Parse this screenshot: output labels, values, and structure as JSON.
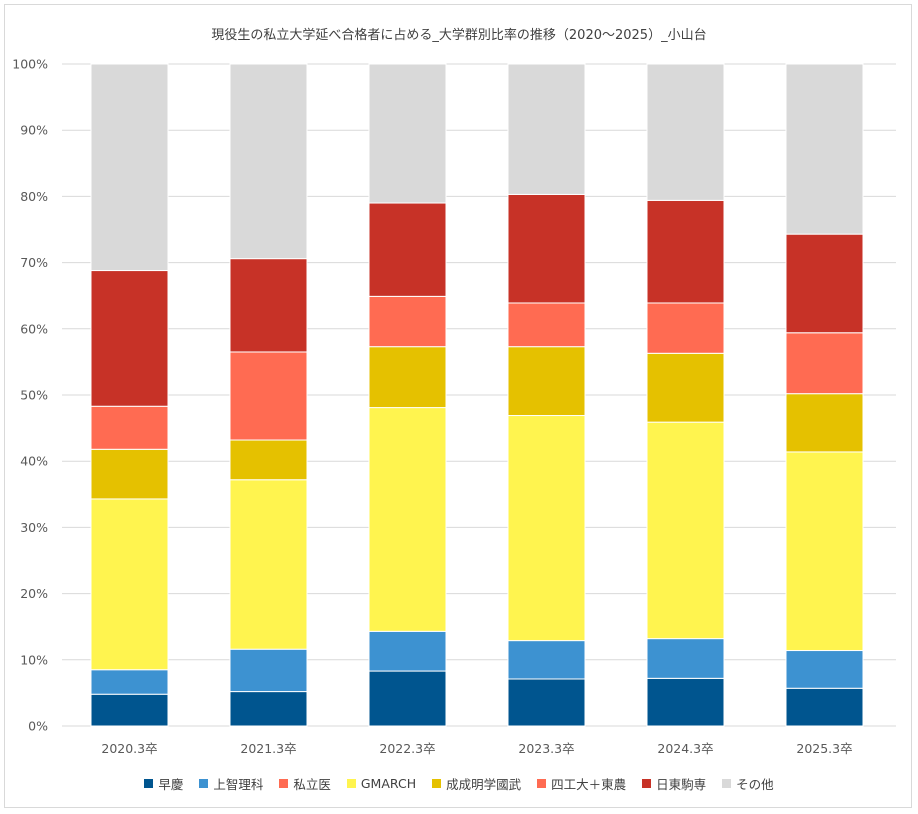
{
  "chart_data": {
    "type": "bar",
    "stacked": true,
    "percent": true,
    "title": "現役生の私立大学延べ合格者に占める_大学群別比率の推移（2020～2025）_小山台",
    "categories": [
      "2020.3卒",
      "2021.3卒",
      "2022.3卒",
      "2023.3卒",
      "2024.3卒",
      "2025.3卒"
    ],
    "ylim": [
      0,
      100
    ],
    "yticks": [
      "0%",
      "10%",
      "20%",
      "30%",
      "40%",
      "50%",
      "60%",
      "70%",
      "80%",
      "90%",
      "100%"
    ],
    "grid": true,
    "legend_position": "bottom",
    "series": [
      {
        "name": "早慶",
        "color": "#00558f",
        "values": [
          4.8,
          5.2,
          8.3,
          7.1,
          7.2,
          5.7
        ]
      },
      {
        "name": "上智理科",
        "color": "#3d92d1",
        "values": [
          3.7,
          6.4,
          6.0,
          5.8,
          6.0,
          5.7
        ]
      },
      {
        "name": "私立医",
        "color": "#ff6b52",
        "values": [
          0,
          0,
          0,
          0,
          0,
          0
        ]
      },
      {
        "name": "GMARCH",
        "color": "#fff44f",
        "values": [
          25.8,
          25.6,
          33.8,
          34.0,
          32.7,
          30.0
        ]
      },
      {
        "name": "成成明学國武",
        "color": "#e5c100",
        "values": [
          7.5,
          6.0,
          9.2,
          10.4,
          10.4,
          8.8
        ]
      },
      {
        "name": "四工大＋東農",
        "color": "#ff6b52",
        "values": [
          6.5,
          13.3,
          7.6,
          6.6,
          7.6,
          9.2
        ]
      },
      {
        "name": "日東駒専",
        "color": "#c73227",
        "values": [
          20.5,
          14.1,
          14.1,
          16.4,
          15.5,
          14.9
        ]
      },
      {
        "name": "その他",
        "color": "#d9d9d9",
        "values": [
          31.2,
          29.4,
          21.0,
          19.7,
          20.6,
          25.7
        ]
      }
    ]
  }
}
